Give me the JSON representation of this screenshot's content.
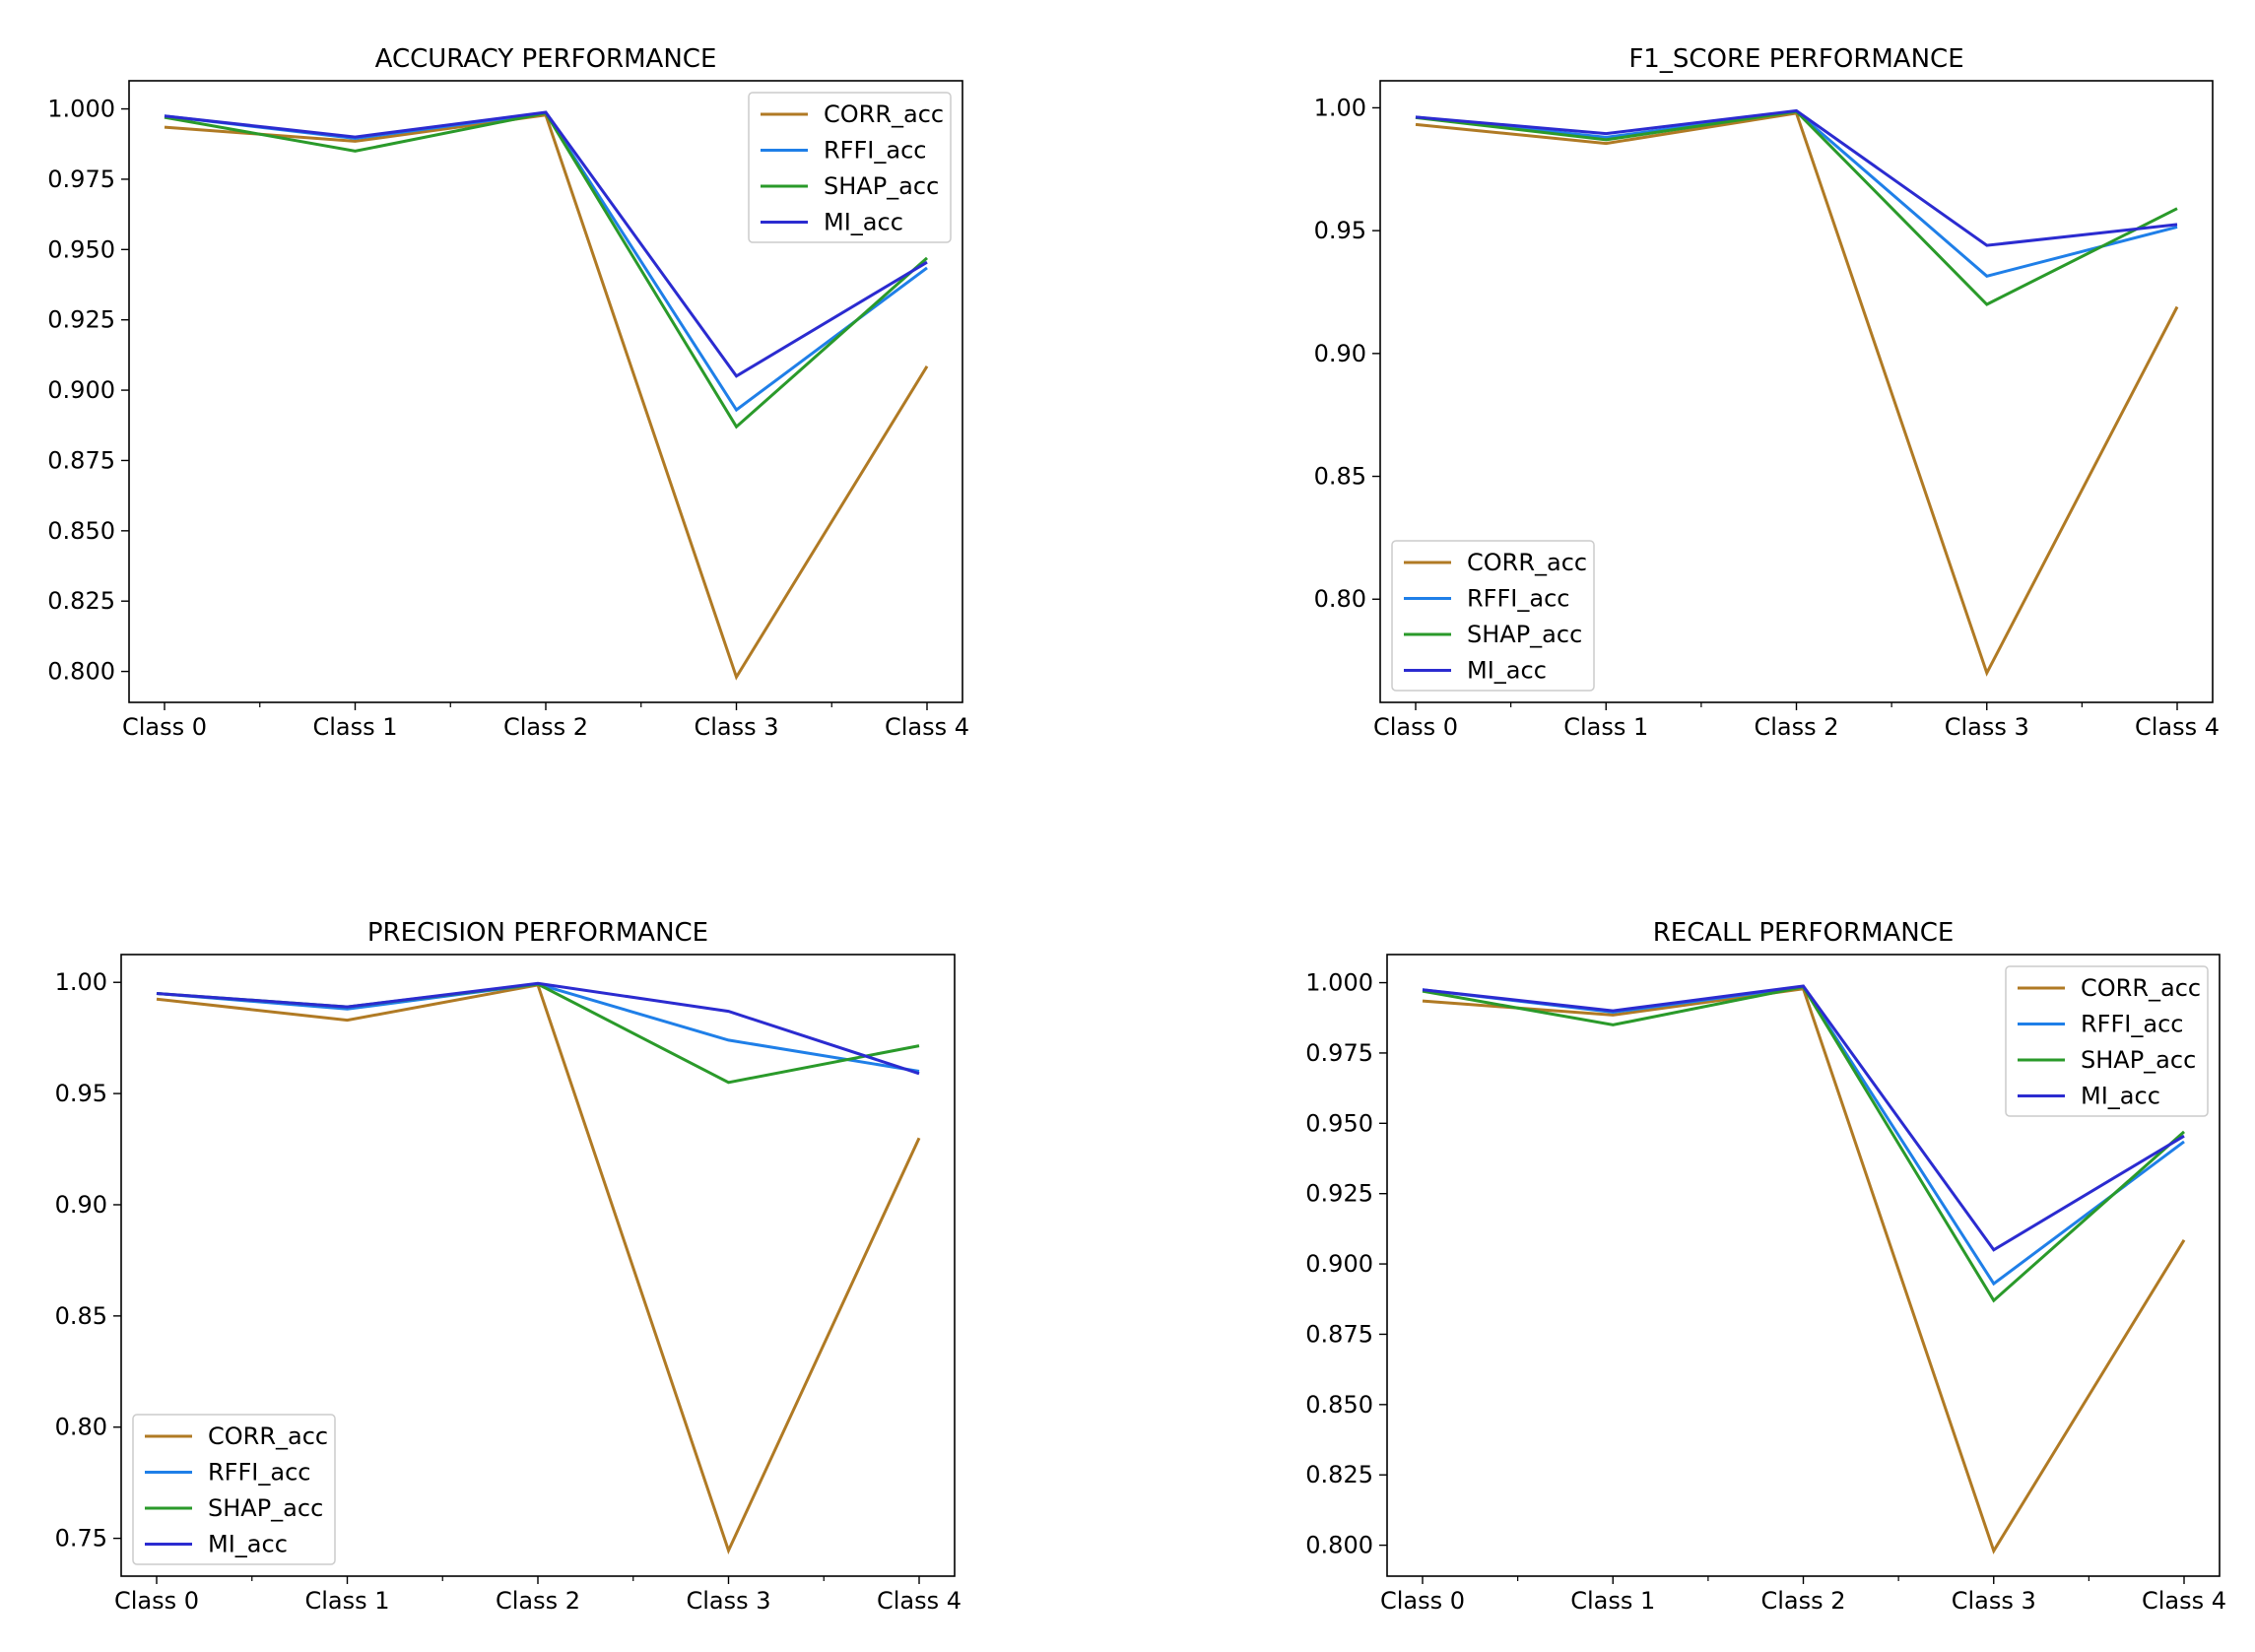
{
  "colors": {
    "CORR_acc": "#b07a24",
    "RFFI_acc": "#1f7fe8",
    "SHAP_acc": "#2a9a2a",
    "MI_acc": "#2b2bd0",
    "axis": "#000000",
    "legend_border": "#cccccc"
  },
  "chart_data": [
    {
      "type": "line",
      "title": "ACCURACY PERFORMANCE",
      "categories": [
        "Class 0",
        "Class 1",
        "Class 2",
        "Class 3",
        "Class 4"
      ],
      "ylim": [
        0.789,
        1.01
      ],
      "yticks": [
        0.8,
        0.825,
        0.85,
        0.875,
        0.9,
        0.925,
        0.95,
        0.975,
        1.0
      ],
      "ytick_labels": [
        "0.800",
        "0.825",
        "0.850",
        "0.875",
        "0.900",
        "0.925",
        "0.950",
        "0.975",
        "1.000"
      ],
      "legend": "top-right",
      "grid": false,
      "series": [
        {
          "name": "CORR_acc",
          "values": [
            0.9935,
            0.9885,
            0.9978,
            0.798,
            0.9085
          ]
        },
        {
          "name": "RFFI_acc",
          "values": [
            0.9975,
            0.9895,
            0.9985,
            0.893,
            0.9435
          ]
        },
        {
          "name": "SHAP_acc",
          "values": [
            0.997,
            0.985,
            0.9985,
            0.887,
            0.947
          ]
        },
        {
          "name": "MI_acc",
          "values": [
            0.9975,
            0.99,
            0.9988,
            0.905,
            0.9455
          ]
        }
      ]
    },
    {
      "type": "line",
      "title": "F1_SCORE PERFORMANCE",
      "categories": [
        "Class 0",
        "Class 1",
        "Class 2",
        "Class 3",
        "Class 4"
      ],
      "ylim": [
        0.758,
        1.011
      ],
      "yticks": [
        0.8,
        0.85,
        0.9,
        0.95,
        1.0
      ],
      "ytick_labels": [
        "0.80",
        "0.85",
        "0.90",
        "0.95",
        "1.00"
      ],
      "legend": "lower-left",
      "grid": false,
      "series": [
        {
          "name": "CORR_acc",
          "values": [
            0.9932,
            0.9855,
            0.9978,
            0.77,
            0.919
          ]
        },
        {
          "name": "RFFI_acc",
          "values": [
            0.9962,
            0.988,
            0.9985,
            0.9315,
            0.9515
          ]
        },
        {
          "name": "SHAP_acc",
          "values": [
            0.996,
            0.987,
            0.9985,
            0.92,
            0.959
          ]
        },
        {
          "name": "MI_acc",
          "values": [
            0.9962,
            0.9895,
            0.9988,
            0.944,
            0.9525
          ]
        }
      ]
    },
    {
      "type": "line",
      "title": "PRECISION PERFORMANCE",
      "categories": [
        "Class 0",
        "Class 1",
        "Class 2",
        "Class 3",
        "Class 4"
      ],
      "ylim": [
        0.733,
        1.0125
      ],
      "yticks": [
        0.75,
        0.8,
        0.85,
        0.9,
        0.95,
        1.0
      ],
      "ytick_labels": [
        "0.75",
        "0.80",
        "0.85",
        "0.90",
        "0.95",
        "1.00"
      ],
      "legend": "lower-left",
      "grid": false,
      "series": [
        {
          "name": "CORR_acc",
          "values": [
            0.9925,
            0.983,
            0.9988,
            0.7445,
            0.93
          ]
        },
        {
          "name": "RFFI_acc",
          "values": [
            0.995,
            0.988,
            0.9992,
            0.974,
            0.96
          ]
        },
        {
          "name": "SHAP_acc",
          "values": [
            0.995,
            0.989,
            0.9992,
            0.955,
            0.9715
          ]
        },
        {
          "name": "MI_acc",
          "values": [
            0.995,
            0.989,
            0.9995,
            0.987,
            0.959
          ]
        }
      ]
    },
    {
      "type": "line",
      "title": "RECALL PERFORMANCE",
      "categories": [
        "Class 0",
        "Class 1",
        "Class 2",
        "Class 3",
        "Class 4"
      ],
      "ylim": [
        0.789,
        1.01
      ],
      "yticks": [
        0.8,
        0.825,
        0.85,
        0.875,
        0.9,
        0.925,
        0.95,
        0.975,
        1.0
      ],
      "ytick_labels": [
        "0.800",
        "0.825",
        "0.850",
        "0.875",
        "0.900",
        "0.925",
        "0.950",
        "0.975",
        "1.000"
      ],
      "legend": "top-right",
      "grid": false,
      "series": [
        {
          "name": "CORR_acc",
          "values": [
            0.9935,
            0.9885,
            0.9978,
            0.798,
            0.9085
          ]
        },
        {
          "name": "RFFI_acc",
          "values": [
            0.9975,
            0.9895,
            0.9985,
            0.893,
            0.9435
          ]
        },
        {
          "name": "SHAP_acc",
          "values": [
            0.997,
            0.985,
            0.9985,
            0.887,
            0.947
          ]
        },
        {
          "name": "MI_acc",
          "values": [
            0.9975,
            0.99,
            0.9988,
            0.905,
            0.9455
          ]
        }
      ]
    }
  ]
}
